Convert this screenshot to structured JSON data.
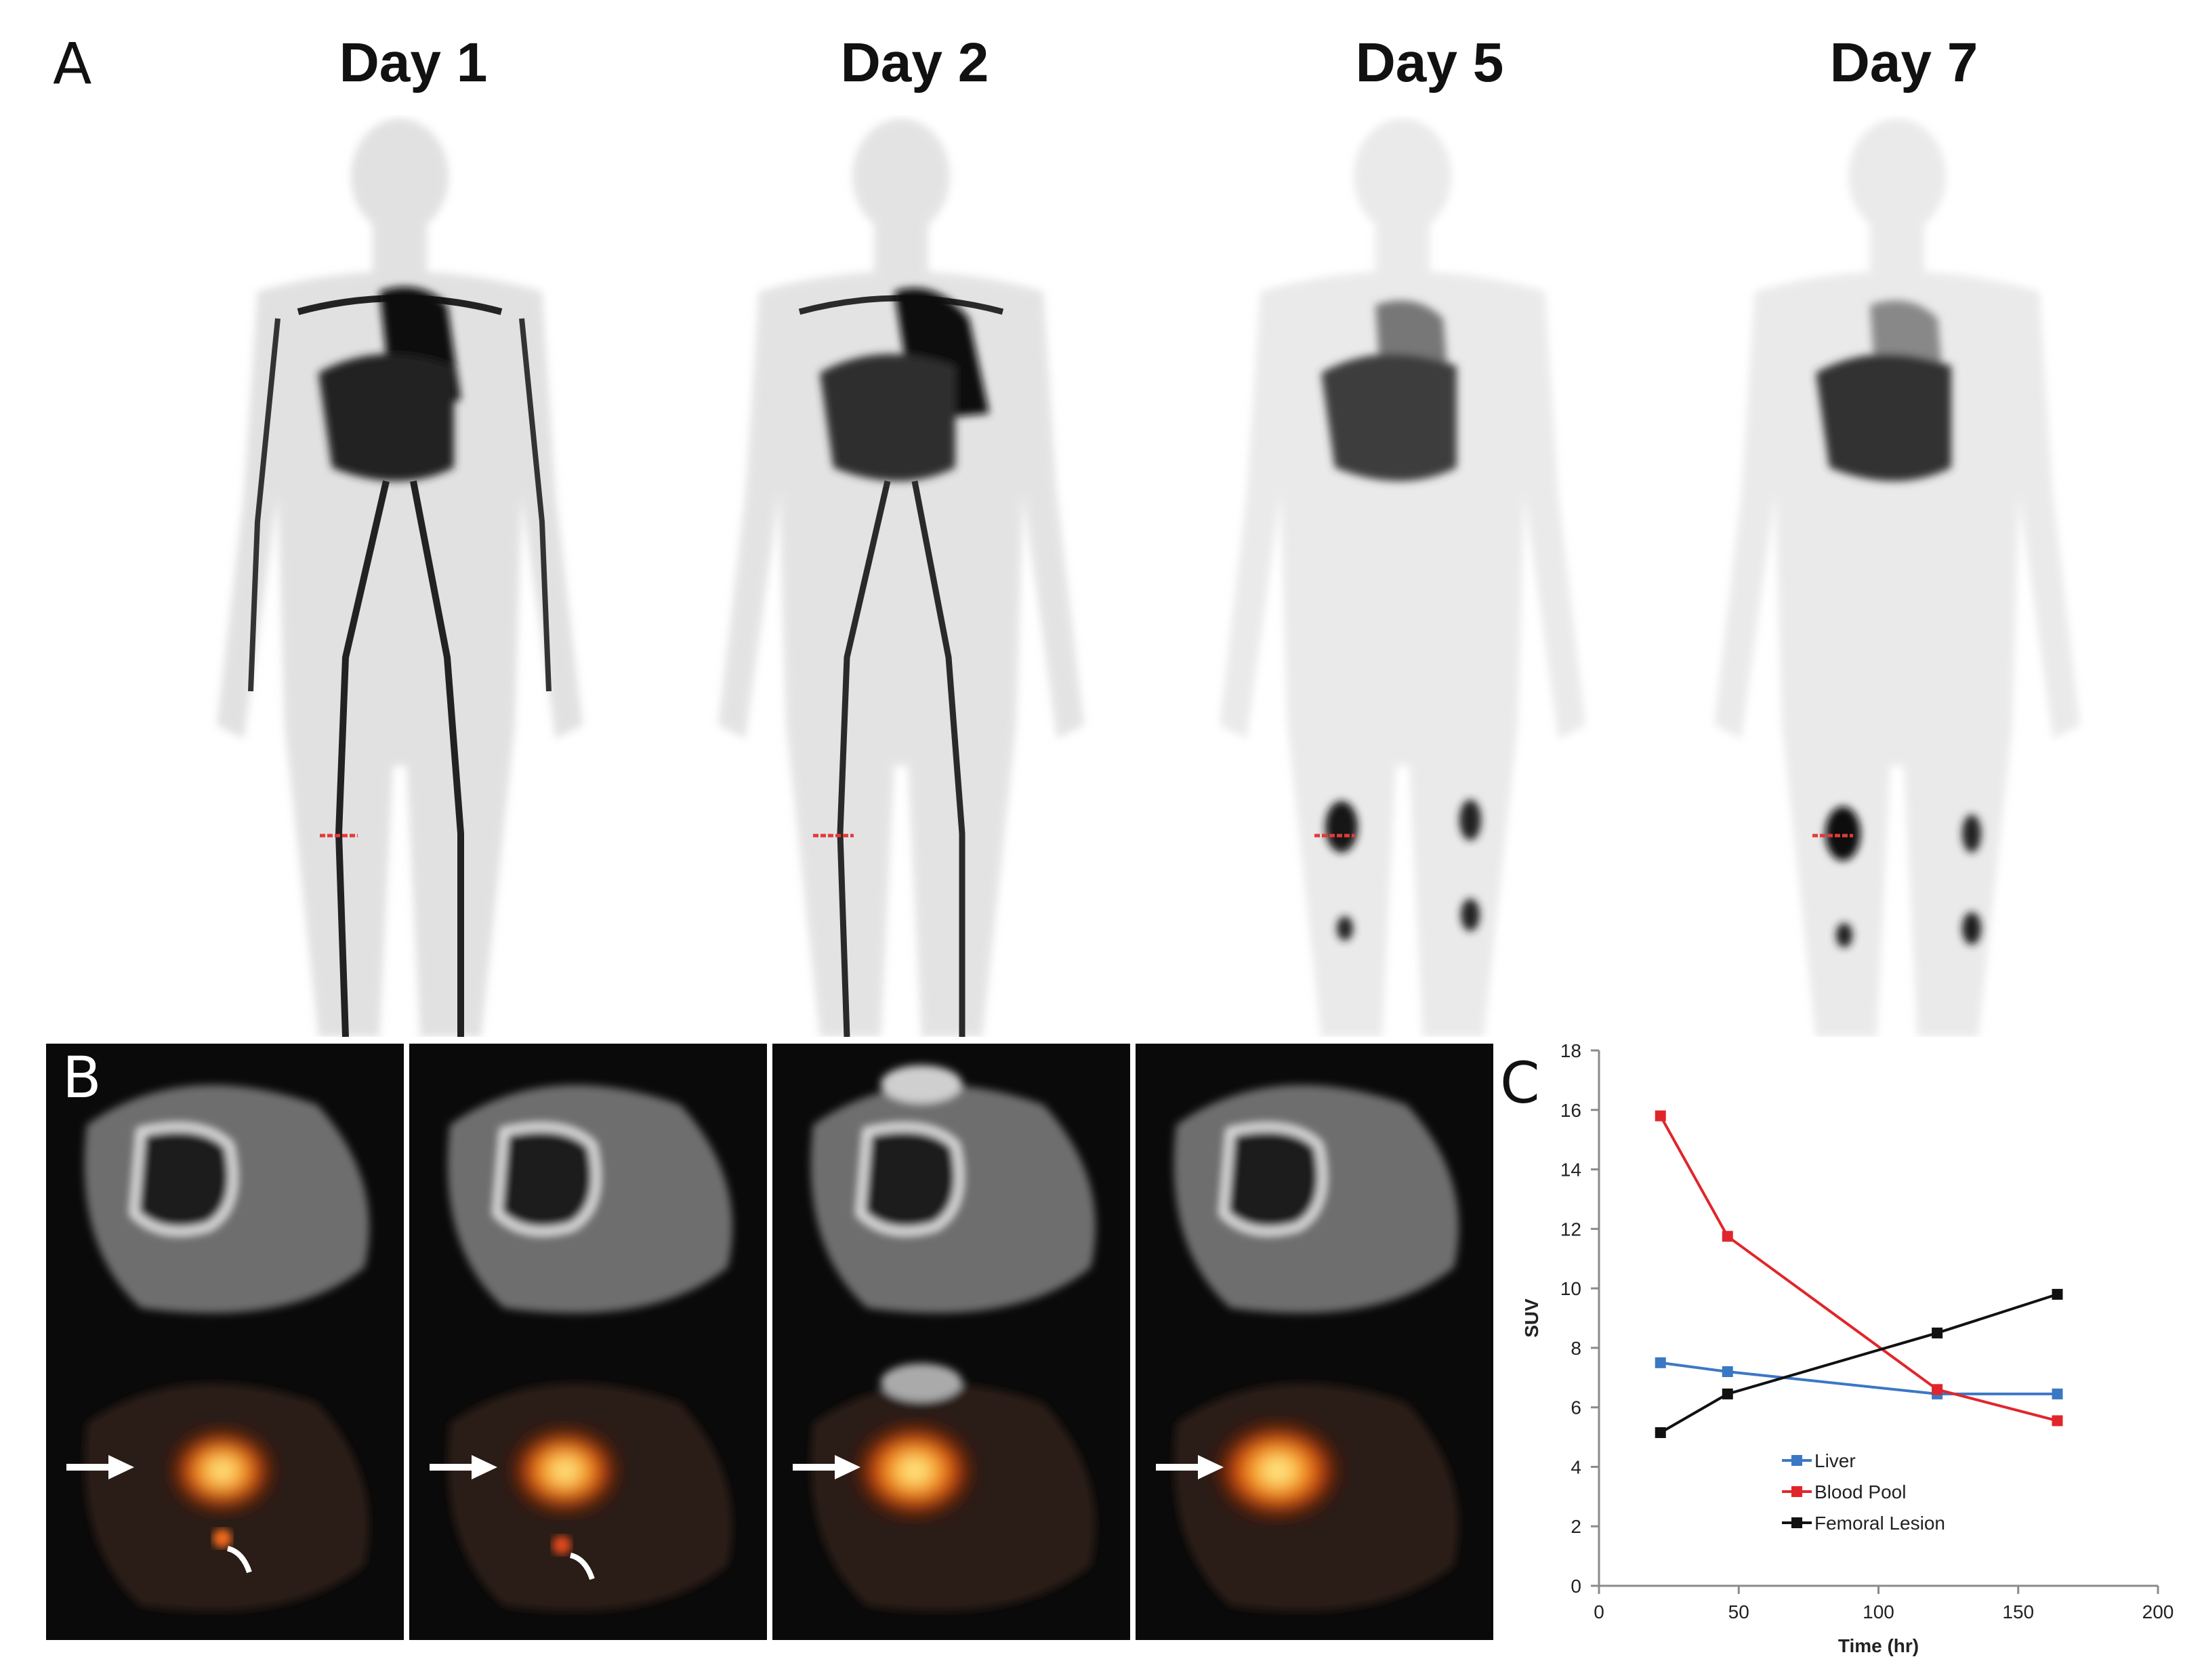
{
  "figure": {
    "panel_a": {
      "letter": "A",
      "days": [
        "Day 1",
        "Day 2",
        "Day 5",
        "Day 7"
      ]
    },
    "panel_b": {
      "letter": "B",
      "tiles": 4
    },
    "panel_c": {
      "letter": "C"
    }
  },
  "colors": {
    "liver": "#3b78c4",
    "blood_pool": "#e0262b",
    "femoral_lesion": "#111111",
    "marker_line": "#e23a3a"
  },
  "chart_data": {
    "type": "line",
    "xlabel": "Time (hr)",
    "ylabel": "SUV",
    "xlim": [
      0,
      200
    ],
    "ylim": [
      0,
      18
    ],
    "xticks": [
      0,
      50,
      100,
      150,
      200
    ],
    "yticks": [
      0,
      2,
      4,
      6,
      8,
      10,
      12,
      14,
      16,
      18
    ],
    "grid": false,
    "legend_position": "center-bottom",
    "series": [
      {
        "name": "Liver",
        "color": "#3b78c4",
        "x": [
          22,
          46,
          121,
          164
        ],
        "y": [
          7.5,
          7.2,
          6.45,
          6.45
        ]
      },
      {
        "name": "Blood Pool",
        "color": "#e0262b",
        "x": [
          22,
          46,
          121,
          164
        ],
        "y": [
          15.8,
          11.75,
          6.6,
          5.55
        ]
      },
      {
        "name": "Femoral Lesion",
        "color": "#111111",
        "x": [
          22,
          46,
          121,
          164
        ],
        "y": [
          5.15,
          6.45,
          8.5,
          9.8
        ]
      }
    ]
  }
}
